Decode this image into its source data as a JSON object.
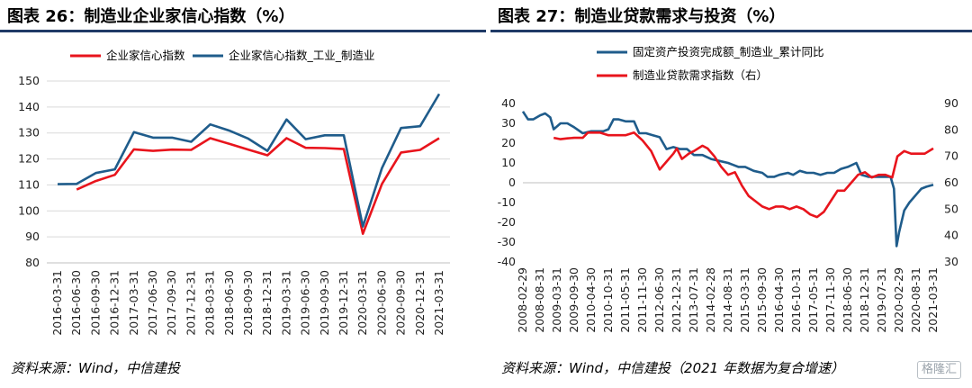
{
  "left": {
    "title": "图表 26：制造业企业家信心指数（%）",
    "source": "资料来源：Wind，中信建投",
    "chart_data": {
      "type": "line",
      "ylim": [
        80,
        150
      ],
      "yticks": [
        80,
        90,
        100,
        110,
        120,
        130,
        140,
        150
      ],
      "grid": true,
      "legend_position": "top",
      "x": [
        "2016-03-31",
        "2016-06-30",
        "2016-09-30",
        "2016-12-31",
        "2017-03-31",
        "2017-06-30",
        "2017-09-30",
        "2017-12-31",
        "2018-03-31",
        "2018-06-30",
        "2018-09-30",
        "2018-12-31",
        "2019-03-31",
        "2019-06-30",
        "2019-09-30",
        "2019-12-31",
        "2020-03-31",
        "2020-06-30",
        "2020-09-30",
        "2020-12-31",
        "2021-03-31"
      ],
      "series": [
        {
          "name": "企业家信心指数",
          "color": "#e8141c",
          "values": [
            null,
            108.2,
            111.5,
            113.9,
            123.7,
            123.1,
            123.6,
            123.5,
            128.0,
            125.8,
            123.6,
            121.4,
            128.0,
            124.3,
            124.2,
            123.8,
            91.2,
            110.4,
            122.5,
            123.5,
            128.0
          ]
        },
        {
          "name": "企业家信心指数_工业_制造业",
          "color": "#1f5c8b",
          "values": [
            110.3,
            110.4,
            114.6,
            116.0,
            130.3,
            128.2,
            128.2,
            126.6,
            133.3,
            130.9,
            127.8,
            123.1,
            135.2,
            127.6,
            129.1,
            129.1,
            94.0,
            116.5,
            131.9,
            132.6,
            145.0
          ]
        }
      ]
    }
  },
  "right": {
    "title": "图表 27：制造业贷款需求与投资（%）",
    "source": "资料来源：Wind，中信建投（2021 年数据为复合增速）",
    "watermark": "格隆汇",
    "chart_data": {
      "type": "line",
      "ylim": [
        -40,
        40
      ],
      "yticks": [
        -40,
        -30,
        -20,
        -10,
        0,
        10,
        20,
        30,
        40
      ],
      "y2lim": [
        30,
        90
      ],
      "y2ticks": [
        30,
        40,
        50,
        60,
        70,
        80,
        90
      ],
      "legend_position": "top",
      "xticks": [
        "2008-02-29",
        "2008-08-31",
        "2009-03-31",
        "2009-09-30",
        "2010-04-30",
        "2010-10-31",
        "2011-05-31",
        "2011-11-30",
        "2012-06-30",
        "2012-12-31",
        "2013-07-31",
        "2014-02-28",
        "2014-08-31",
        "2015-03-31",
        "2015-09-30",
        "2016-04-30",
        "2016-10-31",
        "2017-05-31",
        "2017-11-30",
        "2018-06-30",
        "2018-12-31",
        "2019-07-31",
        "2020-02-29",
        "2020-08-31",
        "2021-03-31"
      ],
      "series": [
        {
          "name": "固定资产投资完成额_制造业_累计同比",
          "axis": "left",
          "color": "#1f5c8b",
          "points": [
            [
              0,
              36
            ],
            [
              0.3,
              32
            ],
            [
              0.6,
              32
            ],
            [
              1.0,
              34
            ],
            [
              1.3,
              35
            ],
            [
              1.6,
              33
            ],
            [
              1.8,
              27
            ],
            [
              2.2,
              30
            ],
            [
              2.6,
              30
            ],
            [
              3.0,
              28
            ],
            [
              3.5,
              25
            ],
            [
              4.0,
              26
            ],
            [
              4.3,
              26
            ],
            [
              4.7,
              26
            ],
            [
              5.0,
              27
            ],
            [
              5.3,
              32
            ],
            [
              5.6,
              32
            ],
            [
              6.0,
              31
            ],
            [
              6.5,
              31
            ],
            [
              6.8,
              25
            ],
            [
              7.2,
              25
            ],
            [
              7.6,
              24
            ],
            [
              8.0,
              23
            ],
            [
              8.4,
              17
            ],
            [
              8.8,
              18
            ],
            [
              9.2,
              17
            ],
            [
              9.6,
              17
            ],
            [
              10.0,
              14
            ],
            [
              10.5,
              14
            ],
            [
              11.0,
              12
            ],
            [
              11.5,
              11
            ],
            [
              12.0,
              10
            ],
            [
              12.3,
              9
            ],
            [
              12.6,
              8
            ],
            [
              13.0,
              8
            ],
            [
              13.5,
              6
            ],
            [
              14.0,
              5
            ],
            [
              14.3,
              3
            ],
            [
              14.7,
              3
            ],
            [
              15.0,
              4
            ],
            [
              15.5,
              5
            ],
            [
              15.8,
              4
            ],
            [
              16.2,
              6
            ],
            [
              16.6,
              5
            ],
            [
              17.0,
              5
            ],
            [
              17.4,
              4
            ],
            [
              17.8,
              5
            ],
            [
              18.2,
              5
            ],
            [
              18.6,
              7
            ],
            [
              19.0,
              8
            ],
            [
              19.5,
              10
            ],
            [
              19.8,
              4
            ],
            [
              20.2,
              3
            ],
            [
              20.8,
              3
            ],
            [
              21.2,
              3
            ],
            [
              21.5,
              3
            ],
            [
              21.7,
              -3
            ],
            [
              21.85,
              -32
            ],
            [
              22.0,
              -25
            ],
            [
              22.3,
              -14
            ],
            [
              22.6,
              -10
            ],
            [
              23.0,
              -6
            ],
            [
              23.3,
              -3
            ],
            [
              23.6,
              -2
            ],
            [
              24.0,
              -1
            ]
          ]
        },
        {
          "name": "制造业贷款需求指数（右）",
          "axis": "right",
          "color": "#e8141c",
          "points": [
            [
              1.8,
              77
            ],
            [
              2.2,
              76.5
            ],
            [
              2.6,
              76.8
            ],
            [
              3.0,
              77
            ],
            [
              3.5,
              77
            ],
            [
              3.8,
              79
            ],
            [
              4.2,
              79
            ],
            [
              4.5,
              79
            ],
            [
              5.0,
              78
            ],
            [
              5.5,
              78
            ],
            [
              6.0,
              78
            ],
            [
              6.5,
              79
            ],
            [
              7.0,
              76
            ],
            [
              7.5,
              72
            ],
            [
              8.0,
              65
            ],
            [
              8.4,
              68
            ],
            [
              8.8,
              71
            ],
            [
              9.0,
              73
            ],
            [
              9.3,
              69
            ],
            [
              9.7,
              71
            ],
            [
              10.0,
              72
            ],
            [
              10.5,
              74
            ],
            [
              10.8,
              73
            ],
            [
              11.2,
              70
            ],
            [
              11.6,
              66
            ],
            [
              12.0,
              63
            ],
            [
              12.4,
              64
            ],
            [
              12.8,
              59
            ],
            [
              13.2,
              55
            ],
            [
              13.6,
              53
            ],
            [
              14.0,
              51
            ],
            [
              14.4,
              50
            ],
            [
              14.8,
              51
            ],
            [
              15.2,
              51
            ],
            [
              15.6,
              50
            ],
            [
              16.0,
              51
            ],
            [
              16.4,
              50
            ],
            [
              16.8,
              48
            ],
            [
              17.2,
              47
            ],
            [
              17.6,
              49
            ],
            [
              18.0,
              53
            ],
            [
              18.4,
              57
            ],
            [
              18.8,
              57
            ],
            [
              19.2,
              60
            ],
            [
              19.6,
              63
            ],
            [
              20.0,
              64
            ],
            [
              20.4,
              62
            ],
            [
              20.8,
              63
            ],
            [
              21.2,
              63
            ],
            [
              21.6,
              62
            ],
            [
              21.9,
              70
            ],
            [
              22.3,
              72
            ],
            [
              22.7,
              71
            ],
            [
              23.1,
              71
            ],
            [
              23.5,
              71
            ],
            [
              24.0,
              73
            ]
          ]
        }
      ]
    }
  }
}
